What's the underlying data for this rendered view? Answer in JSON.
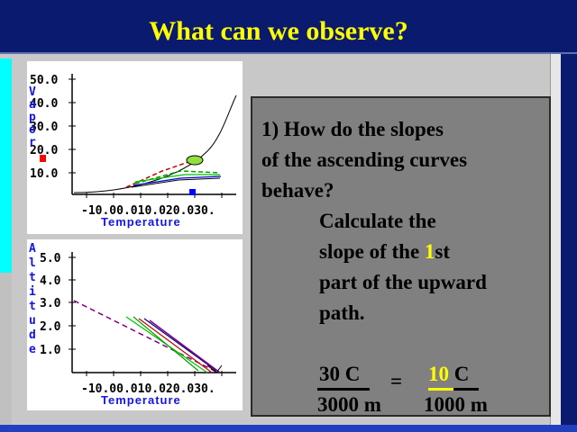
{
  "title": "What can we observe?",
  "vapor_chart": {
    "y_ticks": [
      "50.0",
      "40.0",
      "30.0",
      "20.0",
      "10.0"
    ],
    "y_label_letters": [
      "V",
      "a",
      "p",
      "o",
      "r"
    ],
    "x_ticks": "-10.00.010.020.030.",
    "x_label": "Temperature"
  },
  "altitude_chart": {
    "y_ticks": [
      "5.0",
      "4.0",
      "3.0",
      "2.0",
      "1.0"
    ],
    "y_label_letters": [
      "A",
      "l",
      "t",
      "i",
      "t",
      "u",
      "d",
      "e"
    ],
    "x_ticks": "-10.00.010.020.030.",
    "x_label": "Temperature"
  },
  "question": {
    "line1": "1) How do the slopes",
    "line2": "of the ascending curves",
    "line3": "behave?",
    "line4": "Calculate the",
    "line5_pre": "slope of the ",
    "line5_highlight": "1",
    "line5_post": "st",
    "line6": "part of the upward",
    "line7": "path."
  },
  "fraction": {
    "left_num": "30 C",
    "left_den": "3000 m",
    "equals": "=",
    "right_num_highlight": "10",
    "right_num_unit": " C",
    "right_den": "1000 m"
  },
  "colors": {
    "title_bg": "#0a1a6e",
    "title_text": "#ffff00",
    "box_bg": "#808080",
    "label_blue": "#1515e0"
  }
}
